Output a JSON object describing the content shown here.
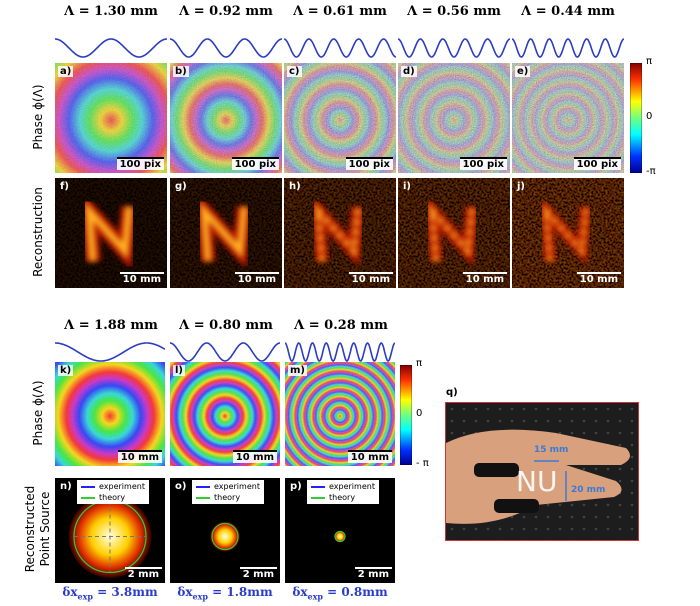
{
  "top": {
    "wavelengths": [
      "Λ = 1.30 mm",
      "Λ = 0.92 mm",
      "Λ = 0.61 mm",
      "Λ = 0.56 mm",
      "Λ = 0.44 mm"
    ],
    "row_labels": [
      "Phase ϕ(Λ)",
      "Reconstruction"
    ],
    "phase_panels": [
      {
        "label": "a)",
        "scale": "100 pix"
      },
      {
        "label": "b)",
        "scale": "100 pix"
      },
      {
        "label": "c)",
        "scale": "100 pix"
      },
      {
        "label": "d)",
        "scale": "100 pix"
      },
      {
        "label": "e)",
        "scale": "100 pix"
      }
    ],
    "recon_panels": [
      {
        "label": "f)",
        "scale": "10 mm"
      },
      {
        "label": "g)",
        "scale": "10 mm"
      },
      {
        "label": "h)",
        "scale": "10 mm"
      },
      {
        "label": "i)",
        "scale": "10 mm"
      },
      {
        "label": "j)",
        "scale": "10 mm"
      }
    ],
    "colorbar": [
      "π",
      "0",
      "-π"
    ]
  },
  "bottom": {
    "wavelengths": [
      "Λ = 1.88 mm",
      "Λ = 0.80 mm",
      "Λ = 0.28 mm"
    ],
    "row_labels": [
      "Phase ϕ(Λ)",
      "Reconstructed",
      "Point Source"
    ],
    "phase_panels": [
      {
        "label": "k)",
        "scale": "10 mm"
      },
      {
        "label": "l)",
        "scale": "10 mm"
      },
      {
        "label": "m)",
        "scale": "10 mm"
      }
    ],
    "psf_panels": [
      {
        "label": "n)",
        "scale": "2 mm"
      },
      {
        "label": "o)",
        "scale": "2 mm"
      },
      {
        "label": "p)",
        "scale": "2 mm"
      }
    ],
    "legend": [
      "experiment",
      "theory"
    ],
    "resolutions": [
      {
        "symbol": "δx",
        "sub": "exp",
        "value": " = 3.8mm"
      },
      {
        "symbol": "δx",
        "sub": "exp",
        "value": " = 1.8mm"
      },
      {
        "symbol": "δx",
        "sub": "exp",
        "value": " = 0.8mm"
      }
    ],
    "colorbar": [
      "π",
      "0",
      "- π"
    ]
  },
  "photo": {
    "label": "q)",
    "text": "NU",
    "dim1": "15 mm",
    "dim2": "20 mm"
  }
}
